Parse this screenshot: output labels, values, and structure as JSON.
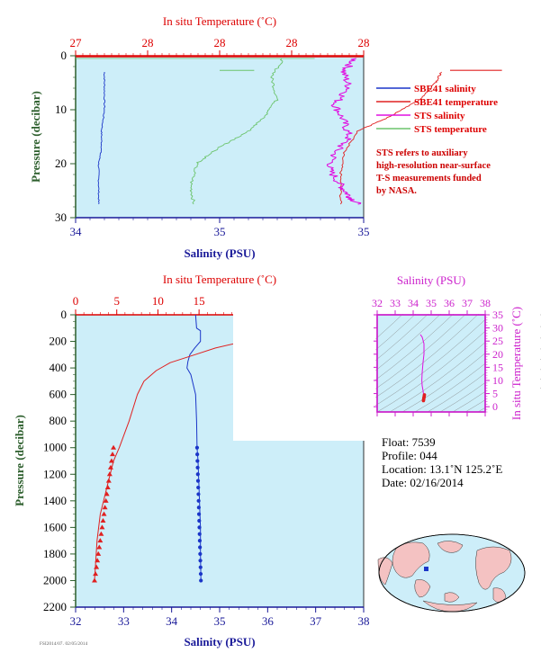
{
  "colors": {
    "plot_bg": "#cdeef9",
    "salinity_axis": "#1a1a99",
    "temperature_axis": "#dd0000",
    "pressure_label": "#2c5e2c",
    "sbe41_salinity": "#1a35c8",
    "sbe41_temperature": "#e02020",
    "sts_salinity": "#e010e0",
    "sts_temperature": "#6cc46c",
    "ts_axis": "#cc22cc",
    "land": "#f4c2c2",
    "ocean": "#cdeef9"
  },
  "top_chart": {
    "title_top": "In situ Temperature (˚C)",
    "xlabel": "Salinity (PSU)",
    "ylabel": "Pressure (decibar)",
    "temp_ticks": [
      "27",
      "28",
      "28",
      "28",
      "28"
    ],
    "sal_ticks": [
      "34",
      "35",
      "35"
    ],
    "pressure_ticks": [
      "0",
      "10",
      "20",
      "30"
    ],
    "legend": [
      {
        "label": "SBE41 salinity",
        "color": "#1a35c8"
      },
      {
        "label": "SBE41 temperature",
        "color": "#e02020"
      },
      {
        "label": "STS salinity",
        "color": "#e010e0"
      },
      {
        "label": "STS temperature",
        "color": "#6cc46c"
      }
    ],
    "note_lines": [
      "STS refers to auxiliary",
      "high-resolution near-surface",
      "T-S measurements funded",
      "by NASA."
    ]
  },
  "bottom_chart": {
    "title_top": "In situ Temperature (˚C)",
    "xlabel": "Salinity (PSU)",
    "ylabel": "Pressure (decibar)",
    "temp_ticks": [
      "0",
      "5",
      "10",
      "15",
      "20",
      "25",
      "30",
      "35"
    ],
    "sal_ticks": [
      "32",
      "33",
      "34",
      "35",
      "36",
      "37",
      "38"
    ],
    "pressure_ticks": [
      "0",
      "200",
      "400",
      "600",
      "800",
      "1000",
      "1200",
      "1400",
      "1600",
      "1800",
      "2000",
      "2200"
    ]
  },
  "ts_chart": {
    "title_top": "Salinity (PSU)",
    "ylabel": "In situ Temperature (˚C)",
    "sal_ticks": [
      "32",
      "33",
      "34",
      "35",
      "36",
      "37",
      "38"
    ],
    "temp_ticks": [
      "0",
      "5",
      "10",
      "15",
      "20",
      "25",
      "30",
      "35"
    ]
  },
  "float_info": {
    "float": "Float:  7539",
    "profile": "Profile:  044",
    "location": "Location:  13.1˚N  125.2˚E",
    "date": "Date:  02/16/2014"
  },
  "footer_text": "FSI2014/07. 02/05/2014",
  "chart_data": [
    {
      "type": "line",
      "name": "near-surface profile",
      "ylabel": "Pressure (decibar)",
      "xlabel": "Salinity (PSU)",
      "ylim": [
        0,
        30
      ],
      "xlim_salinity": [
        34,
        35
      ],
      "series": [
        {
          "name": "SBE41 salinity",
          "x": [
            34.1,
            34.1,
            34.1,
            34.09,
            34.09,
            34.08,
            34.08,
            34.08
          ],
          "y": [
            3,
            6,
            10,
            14,
            17,
            20,
            24,
            27.5
          ]
        },
        {
          "name": "SBE41 temperature",
          "x": [
            35.27,
            35.25,
            35.2,
            35.1,
            34.98,
            34.93,
            34.92,
            34.92
          ],
          "y": [
            3,
            5,
            8,
            11,
            14,
            18,
            22,
            27.5
          ]
        },
        {
          "name": "STS salinity",
          "x": [
            34.97,
            34.93,
            34.95,
            34.9,
            34.93,
            34.95,
            34.9,
            34.88,
            34.92,
            34.95,
            34.98
          ],
          "y": [
            0.5,
            3,
            6,
            9,
            12,
            15,
            18,
            21,
            24,
            26,
            27.5
          ]
        },
        {
          "name": "STS temperature",
          "x": [
            34.72,
            34.68,
            34.7,
            34.66,
            34.6,
            34.5,
            34.42,
            34.4,
            34.41
          ],
          "y": [
            0.5,
            4,
            8,
            11,
            14,
            17,
            20,
            24,
            27.5
          ]
        }
      ]
    },
    {
      "type": "line",
      "name": "full profile",
      "ylabel": "Pressure (decibar)",
      "xlabel": "Salinity (PSU)",
      "ylim": [
        0,
        2200
      ],
      "xlim_salinity": [
        32,
        38
      ],
      "xlim_temperature": [
        0,
        35
      ],
      "series": [
        {
          "name": "Salinity",
          "x": [
            34.5,
            34.52,
            34.6,
            34.6,
            34.48,
            34.38,
            34.34,
            34.32,
            34.4,
            34.5,
            34.52,
            34.53,
            34.55,
            34.56,
            34.57,
            34.58,
            34.59,
            34.6,
            34.6,
            34.61
          ],
          "y": [
            0,
            100,
            120,
            200,
            250,
            300,
            350,
            400,
            450,
            600,
            800,
            1000,
            1100,
            1200,
            1300,
            1400,
            1500,
            1600,
            1800,
            2000
          ]
        },
        {
          "name": "Temperature",
          "x": [
            27.5,
            27.4,
            27.0,
            24.0,
            20.5,
            17.0,
            14.5,
            11.5,
            9.8,
            8.3,
            7.5,
            6.5,
            5.3,
            4.6,
            4.2,
            3.8,
            3.4,
            3.0,
            2.6,
            2.3
          ],
          "y": [
            0,
            100,
            120,
            150,
            200,
            250,
            300,
            360,
            420,
            500,
            600,
            800,
            1000,
            1100,
            1200,
            1300,
            1400,
            1500,
            1700,
            2000
          ]
        }
      ]
    },
    {
      "type": "scatter",
      "name": "T-S diagram",
      "xlabel": "Salinity (PSU)",
      "ylabel": "In situ Temperature (˚C)",
      "xlim": [
        32,
        38
      ],
      "ylim": [
        -2,
        35
      ],
      "x": [
        34.4,
        34.5,
        34.6,
        34.6,
        34.55,
        34.5,
        34.48,
        34.5,
        34.55,
        34.6
      ],
      "y": [
        27.5,
        26.5,
        24,
        20,
        17,
        13,
        10,
        8,
        6,
        3.5
      ]
    }
  ]
}
